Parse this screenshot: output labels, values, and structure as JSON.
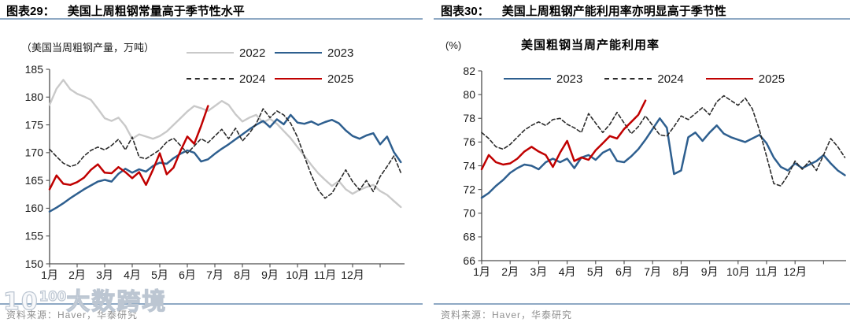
{
  "watermark": {
    "prefix": "10",
    "sup": "100",
    "brand": "大数跨境"
  },
  "panels": {
    "left": {
      "fig_label": "图表29：",
      "title": "美国上周粗钢常量高于季节性水平",
      "unit_label": "（美国当周粗钢产量，万吨）",
      "source": "资料来源：Haver，华泰研究"
    },
    "right": {
      "fig_label": "图表30：",
      "title": "美国上周粗钢产能利用率亦明显高于季节性",
      "unit_label": "(%)",
      "inner_title": "美国粗钢当周产能利用率",
      "source": "资料来源：Haver，华泰研究"
    }
  },
  "colors": {
    "header_rule": "#8fa9c4",
    "axis": "#4d4d4d",
    "tick_label": "#1a1a1a",
    "source_text": "#8f8f8f"
  },
  "chart_data": [
    {
      "type": "line",
      "panel": "left",
      "title": "美国上周粗钢常量高于季节性水平",
      "ylabel": "美国当周粗钢产量（万吨）",
      "ylim": [
        150,
        185
      ],
      "yticks": [
        150,
        155,
        160,
        165,
        170,
        175,
        180,
        185
      ],
      "x_unit": "week-of-year (approx. 52 weekly points per series)",
      "x_tick_labels": [
        "1月",
        "2月",
        "3月",
        "4月",
        "5月",
        "6月",
        "7月",
        "8月",
        "9月",
        "10月",
        "11月",
        "12月"
      ],
      "legend_position": "top",
      "series": [
        {
          "name": "2022",
          "color": "#c9c9c9",
          "dash": false,
          "width": 2.4,
          "values": [
            178.6,
            181.5,
            183.1,
            181.4,
            180.6,
            180.1,
            179.5,
            177.9,
            176.2,
            175.7,
            176.3,
            174.8,
            172.5,
            173.3,
            172.9,
            172.5,
            173.0,
            173.8,
            175.0,
            176.2,
            177.4,
            178.4,
            178.0,
            177.5,
            178.4,
            179.3,
            178.6,
            176.9,
            175.6,
            176.3,
            176.8,
            175.4,
            176.1,
            175.2,
            173.9,
            172.6,
            171.0,
            169.4,
            167.8,
            166.3,
            165.1,
            164.0,
            164.9,
            163.4,
            162.6,
            163.3,
            163.8,
            164.2,
            163.1,
            162.4,
            161.3,
            160.2
          ]
        },
        {
          "name": "2023",
          "color": "#2e5f8f",
          "dash": false,
          "width": 2.5,
          "values": [
            159.4,
            160.1,
            160.9,
            161.8,
            162.6,
            163.4,
            164.1,
            164.8,
            165.1,
            164.8,
            166.2,
            167.1,
            166.4,
            167.0,
            166.6,
            167.6,
            168.2,
            168.0,
            169.0,
            169.8,
            170.4,
            170.0,
            168.4,
            168.8,
            169.8,
            170.7,
            171.5,
            172.4,
            173.3,
            174.2,
            175.0,
            175.7,
            174.6,
            176.0,
            175.1,
            176.8,
            175.4,
            175.2,
            175.6,
            175.0,
            175.5,
            175.9,
            175.3,
            174.0,
            173.0,
            172.5,
            173.1,
            173.5,
            171.5,
            172.9,
            170.1,
            168.3
          ]
        },
        {
          "name": "2024",
          "color": "#2b2b2b",
          "dash": true,
          "width": 1.6,
          "values": [
            170.6,
            169.3,
            168.1,
            167.5,
            167.9,
            169.4,
            170.4,
            171.0,
            170.5,
            171.3,
            172.4,
            170.5,
            172.8,
            169.2,
            168.9,
            169.7,
            170.5,
            171.9,
            172.6,
            171.3,
            169.9,
            171.2,
            172.5,
            171.8,
            173.0,
            174.2,
            172.5,
            174.4,
            172.1,
            173.5,
            175.2,
            177.9,
            176.3,
            177.5,
            176.8,
            175.3,
            172.8,
            169.3,
            166.0,
            163.3,
            161.8,
            162.7,
            164.8,
            166.9,
            164.8,
            163.3,
            165.0,
            163.0,
            165.7,
            167.5,
            169.4,
            166.4
          ]
        },
        {
          "name": "2025",
          "color": "#c00000",
          "dash": false,
          "width": 2.5,
          "values": [
            163.4,
            165.9,
            164.4,
            164.2,
            164.7,
            165.5,
            166.9,
            167.9,
            166.4,
            166.3,
            167.4,
            166.5,
            165.4,
            166.5,
            164.2,
            166.9,
            169.9,
            166.1,
            167.3,
            170.3,
            172.9,
            171.6,
            174.8,
            178.4
          ]
        }
      ]
    },
    {
      "type": "line",
      "panel": "right",
      "title": "美国粗钢当周产能利用率",
      "ylabel": "%",
      "ylim": [
        66,
        82
      ],
      "yticks": [
        66,
        68,
        70,
        72,
        74,
        76,
        78,
        80,
        82
      ],
      "x_unit": "week-of-year (approx. 52 weekly points per series)",
      "x_tick_labels": [
        "1月",
        "2月",
        "3月",
        "4月",
        "5月",
        "6月",
        "7月",
        "8月",
        "9月",
        "10月",
        "11月",
        "12月"
      ],
      "legend_position": "top",
      "series": [
        {
          "name": "2023",
          "color": "#2e5f8f",
          "dash": false,
          "width": 2.5,
          "values": [
            71.3,
            71.7,
            72.3,
            72.8,
            73.4,
            73.8,
            74.1,
            74.0,
            73.7,
            74.3,
            74.6,
            74.3,
            74.6,
            73.8,
            74.7,
            74.9,
            74.5,
            75.1,
            75.4,
            74.4,
            74.3,
            74.8,
            75.4,
            76.2,
            77.1,
            78.0,
            77.2,
            73.3,
            73.6,
            76.4,
            76.8,
            76.1,
            76.8,
            77.4,
            76.7,
            76.4,
            76.2,
            76.0,
            76.3,
            76.6,
            75.9,
            74.7,
            73.9,
            73.6,
            74.2,
            73.8,
            74.1,
            74.4,
            74.9,
            74.2,
            73.6,
            73.2
          ]
        },
        {
          "name": "2024",
          "color": "#2b2b2b",
          "dash": true,
          "width": 1.6,
          "values": [
            76.8,
            76.3,
            75.6,
            75.4,
            75.8,
            76.4,
            77.0,
            77.4,
            77.7,
            77.4,
            77.9,
            78.0,
            77.5,
            77.2,
            76.8,
            78.4,
            77.6,
            76.8,
            77.5,
            78.5,
            77.6,
            76.7,
            77.3,
            78.2,
            77.4,
            76.6,
            76.5,
            77.3,
            78.2,
            77.9,
            78.4,
            78.9,
            78.3,
            79.4,
            79.9,
            79.5,
            79.1,
            79.7,
            78.8,
            77.0,
            74.8,
            72.5,
            72.3,
            73.2,
            74.4,
            73.7,
            74.4,
            73.6,
            74.9,
            76.3,
            75.6,
            74.7
          ]
        },
        {
          "name": "2025",
          "color": "#c00000",
          "dash": false,
          "width": 2.5,
          "values": [
            73.7,
            74.9,
            74.3,
            74.1,
            74.2,
            74.6,
            75.2,
            75.6,
            75.2,
            74.9,
            73.9,
            75.1,
            76.1,
            74.4,
            74.7,
            74.5,
            75.3,
            75.9,
            76.5,
            76.3,
            77.1,
            77.7,
            78.3,
            79.5
          ]
        }
      ]
    }
  ]
}
